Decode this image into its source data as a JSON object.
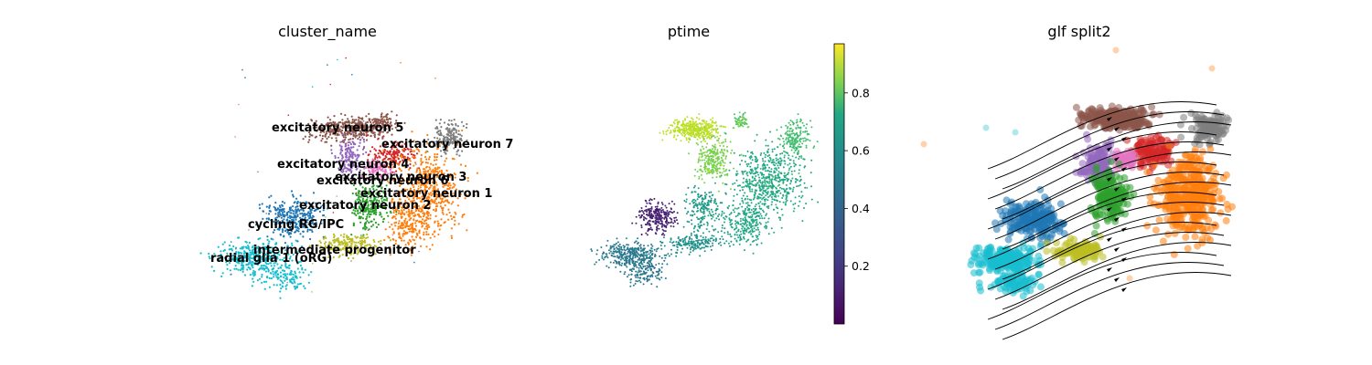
{
  "chart_data": [
    {
      "type": "scatter",
      "title": "cluster_name",
      "xlabel": "",
      "ylabel": "",
      "grid": false,
      "legend": "on data",
      "categories": [
        {
          "name": "excitatory neuron 5",
          "color": "#8c564b"
        },
        {
          "name": "excitatory neuron 7",
          "color": "#7f7f7f"
        },
        {
          "name": "excitatory neuron 4",
          "color": "#9467bd"
        },
        {
          "name": "excitatory neuron 3",
          "color": "#d62728"
        },
        {
          "name": "excitatory neuron 6",
          "color": "#e377c2"
        },
        {
          "name": "excitatory neuron 1",
          "color": "#ff7f0e"
        },
        {
          "name": "excitatory neuron 2",
          "color": "#2ca02c"
        },
        {
          "name": "cycling RG/IPC",
          "color": "#1f77b4"
        },
        {
          "name": "intermediate progenitor",
          "color": "#bcbd22"
        },
        {
          "name": "radial glia 1 (oRG)",
          "color": "#17becf"
        }
      ]
    },
    {
      "type": "scatter",
      "title": "ptime",
      "xlabel": "",
      "ylabel": "",
      "grid": false,
      "colormap": "viridis",
      "colorbar": {
        "range": [
          0.0,
          0.97
        ],
        "ticks": [
          "0.2",
          "0.4",
          "0.6",
          "0.8"
        ]
      }
    },
    {
      "type": "scatter",
      "title": "glf split2",
      "xlabel": "",
      "ylabel": "",
      "grid": false,
      "overlay": "velocity streamlines"
    }
  ]
}
